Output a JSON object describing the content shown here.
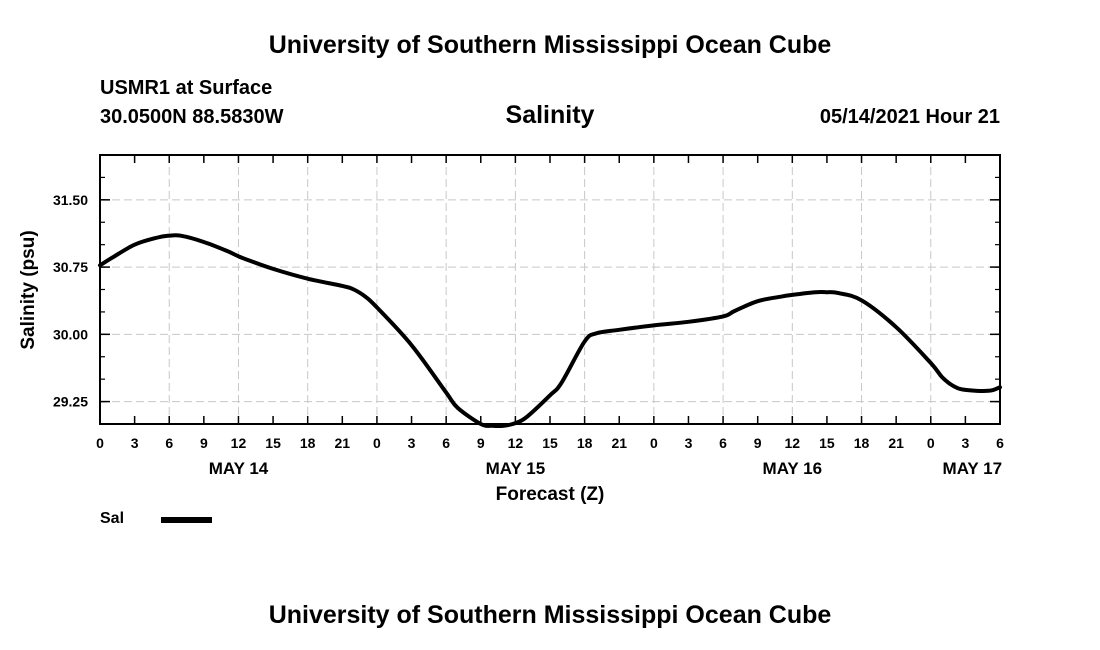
{
  "header": {
    "title": "University of Southern Mississippi Ocean Cube",
    "station": "USMR1 at Surface",
    "coords": "30.0500N  88.5830W",
    "run_time": "05/14/2021 Hour 21"
  },
  "footer": {
    "title": "University of Southern Mississippi Ocean Cube"
  },
  "chart_data": {
    "type": "line",
    "title": "Salinity",
    "xlabel": "Forecast (Z)",
    "ylabel": "Salinity (psu)",
    "xlim": [
      0,
      78
    ],
    "ylim": [
      29.0,
      32.0
    ],
    "grid": true,
    "x_ticks": [
      0,
      3,
      6,
      9,
      12,
      15,
      18,
      21,
      24,
      27,
      30,
      33,
      36,
      39,
      42,
      45,
      48,
      51,
      54,
      57,
      60,
      63,
      66,
      69,
      72,
      75,
      78
    ],
    "x_tick_labels": [
      "0",
      "3",
      "6",
      "9",
      "12",
      "15",
      "18",
      "21",
      "0",
      "3",
      "6",
      "9",
      "12",
      "15",
      "18",
      "21",
      "0",
      "3",
      "6",
      "9",
      "12",
      "15",
      "18",
      "21",
      "0",
      "3",
      "6"
    ],
    "y_ticks": [
      29.25,
      30.0,
      30.75,
      31.5
    ],
    "y_tick_labels": [
      "29.25",
      "30.00",
      "30.75",
      "31.50"
    ],
    "day_labels": [
      {
        "label": "MAY 14",
        "x": 12
      },
      {
        "label": "MAY 15",
        "x": 36
      },
      {
        "label": "MAY 16",
        "x": 60
      },
      {
        "label": "MAY 17",
        "x": 75.6
      }
    ],
    "legend": [
      {
        "name": "Sal",
        "color": "#000000"
      }
    ],
    "series": [
      {
        "name": "Sal",
        "color": "#000000",
        "x": [
          0,
          1,
          3,
          5,
          6,
          7,
          9,
          11,
          12,
          13,
          15,
          18,
          21,
          22,
          23,
          24,
          27,
          30,
          31,
          33,
          34,
          35,
          36,
          37,
          39,
          40,
          42,
          43,
          45,
          48,
          51,
          54,
          55,
          57,
          59,
          60,
          62,
          63,
          64,
          66,
          69,
          72,
          73,
          74,
          75,
          77,
          78
        ],
        "values": [
          30.77,
          30.85,
          31.0,
          31.08,
          31.1,
          31.1,
          31.03,
          30.93,
          30.87,
          30.82,
          30.73,
          30.62,
          30.54,
          30.5,
          30.42,
          30.3,
          29.88,
          29.35,
          29.18,
          29.0,
          28.98,
          28.98,
          29.01,
          29.08,
          29.32,
          29.46,
          29.92,
          30.01,
          30.05,
          30.1,
          30.14,
          30.2,
          30.26,
          30.37,
          30.42,
          30.44,
          30.47,
          30.47,
          30.46,
          30.38,
          30.08,
          29.68,
          29.52,
          29.42,
          29.38,
          29.37,
          29.41
        ]
      }
    ]
  }
}
